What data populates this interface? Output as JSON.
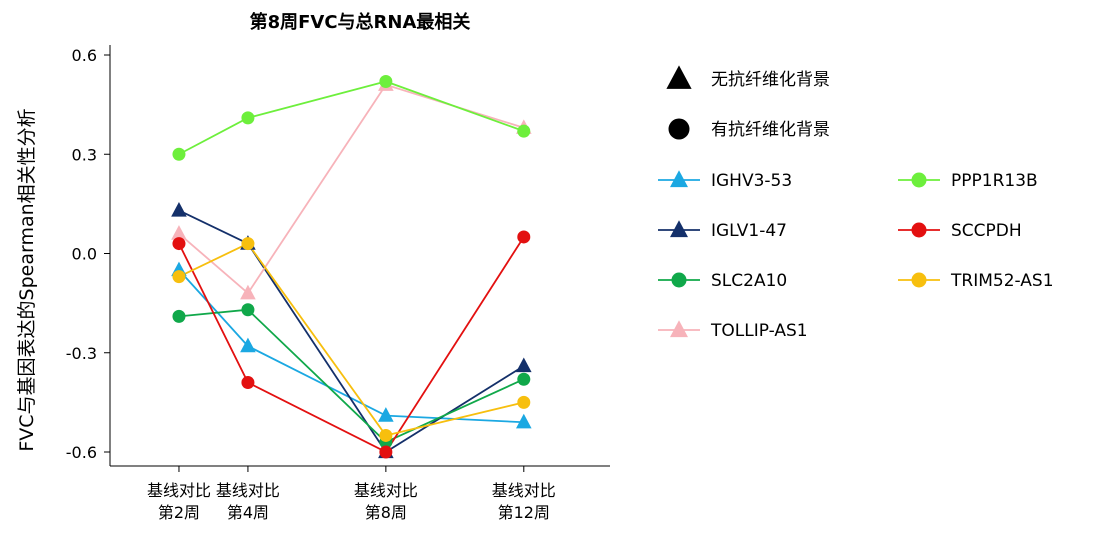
{
  "chart_data": {
    "type": "line",
    "title": "第8周FVC与总RNA最相关",
    "ylabel": "FVC与基因表达的Spearman相关性分析",
    "xlabel": "",
    "categories": [
      [
        "基线对比",
        "第2周"
      ],
      [
        "基线对比",
        "第4周"
      ],
      [
        "基线对比",
        "第8周"
      ],
      [
        "基线对比",
        "第12周"
      ]
    ],
    "x": [
      2,
      4,
      8,
      12
    ],
    "ylim": [
      -0.6,
      0.6
    ],
    "yticks": [
      0.6,
      0.3,
      0.0,
      -0.3,
      -0.6
    ],
    "ytick_labels": [
      "0.6",
      "0.3",
      "0.0",
      "-0.3",
      "-0.6"
    ],
    "grid": false,
    "legend_position": "right",
    "marker_legend": [
      {
        "label": "无抗纤维化背景",
        "marker": "triangle"
      },
      {
        "label": "有抗纤维化背景",
        "marker": "circle"
      }
    ],
    "series": [
      {
        "name": "IGHV3-53",
        "color": "#1ba8e2",
        "marker": "triangle",
        "values": [
          -0.05,
          -0.28,
          -0.49,
          -0.51
        ]
      },
      {
        "name": "IGLV1-47",
        "color": "#14306a",
        "marker": "triangle",
        "values": [
          0.13,
          0.03,
          -0.6,
          -0.34
        ]
      },
      {
        "name": "SLC2A10",
        "color": "#10a84a",
        "marker": "circle",
        "values": [
          -0.19,
          -0.17,
          -0.57,
          -0.38
        ]
      },
      {
        "name": "TOLLIP-AS1",
        "color": "#f7b3ba",
        "marker": "triangle",
        "values": [
          0.06,
          -0.12,
          0.51,
          0.38
        ]
      },
      {
        "name": "PPP1R13B",
        "color": "#6def3c",
        "marker": "circle",
        "values": [
          0.3,
          0.41,
          0.52,
          0.37
        ]
      },
      {
        "name": "SCCPDH",
        "color": "#e31010",
        "marker": "circle",
        "values": [
          0.03,
          -0.39,
          -0.6,
          0.05
        ]
      },
      {
        "name": "TRIM52-AS1",
        "color": "#f7bf0e",
        "marker": "circle",
        "values": [
          -0.07,
          0.03,
          -0.55,
          -0.45
        ]
      }
    ]
  }
}
